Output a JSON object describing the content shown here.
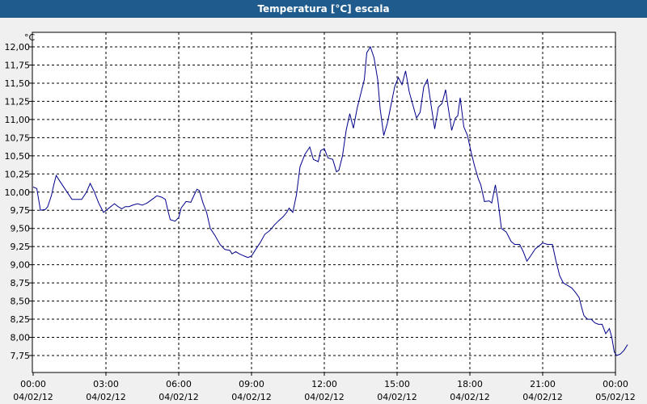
{
  "window": {
    "title": "Temperatura [°C] escala"
  },
  "chart_data": {
    "type": "line",
    "title": "Temperatura [°C] escala",
    "ylabel": "°C",
    "xlabel": "",
    "ylim": [
      7.55,
      12.17
    ],
    "xlim": [
      0,
      24
    ],
    "grid": true,
    "y_ticks": [
      "12,00",
      "11,75",
      "11,50",
      "11,25",
      "11,00",
      "10,75",
      "10,50",
      "10,25",
      "10,00",
      "9,75",
      "9,50",
      "9,25",
      "9,00",
      "8,75",
      "8,50",
      "8,25",
      "8,00",
      "7,75"
    ],
    "y_tick_values": [
      12.0,
      11.75,
      11.5,
      11.25,
      11.0,
      10.75,
      10.5,
      10.25,
      10.0,
      9.75,
      9.5,
      9.25,
      9.0,
      8.75,
      8.5,
      8.25,
      8.0,
      7.75
    ],
    "x_ticks": [
      {
        "time": "00:00",
        "date": "04/02/12",
        "hour": 0
      },
      {
        "time": "03:00",
        "date": "04/02/12",
        "hour": 3
      },
      {
        "time": "06:00",
        "date": "04/02/12",
        "hour": 6
      },
      {
        "time": "09:00",
        "date": "04/02/12",
        "hour": 9
      },
      {
        "time": "12:00",
        "date": "04/02/12",
        "hour": 12
      },
      {
        "time": "15:00",
        "date": "04/02/12",
        "hour": 15
      },
      {
        "time": "18:00",
        "date": "04/02/12",
        "hour": 18
      },
      {
        "time": "21:00",
        "date": "04/02/12",
        "hour": 21
      },
      {
        "time": "00:00",
        "date": "05/02/12",
        "hour": 24
      }
    ],
    "series": [
      {
        "color": "#00008b",
        "points": [
          [
            0.0,
            10.07
          ],
          [
            0.15,
            10.05
          ],
          [
            0.3,
            9.75
          ],
          [
            0.5,
            9.76
          ],
          [
            0.6,
            9.8
          ],
          [
            0.75,
            9.95
          ],
          [
            0.85,
            10.1
          ],
          [
            0.95,
            10.23
          ],
          [
            1.1,
            10.15
          ],
          [
            1.3,
            10.05
          ],
          [
            1.5,
            9.95
          ],
          [
            1.6,
            9.9
          ],
          [
            1.8,
            9.9
          ],
          [
            2.0,
            9.9
          ],
          [
            2.2,
            10.0
          ],
          [
            2.35,
            10.12
          ],
          [
            2.5,
            10.02
          ],
          [
            2.7,
            9.85
          ],
          [
            2.9,
            9.72
          ],
          [
            3.05,
            9.76
          ],
          [
            3.2,
            9.8
          ],
          [
            3.35,
            9.84
          ],
          [
            3.5,
            9.8
          ],
          [
            3.65,
            9.77
          ],
          [
            3.8,
            9.8
          ],
          [
            3.95,
            9.8
          ],
          [
            4.1,
            9.82
          ],
          [
            4.3,
            9.84
          ],
          [
            4.5,
            9.82
          ],
          [
            4.7,
            9.85
          ],
          [
            4.9,
            9.9
          ],
          [
            5.1,
            9.95
          ],
          [
            5.3,
            9.93
          ],
          [
            5.45,
            9.9
          ],
          [
            5.55,
            9.75
          ],
          [
            5.65,
            9.62
          ],
          [
            5.85,
            9.6
          ],
          [
            6.0,
            9.65
          ],
          [
            6.1,
            9.78
          ],
          [
            6.3,
            9.87
          ],
          [
            6.5,
            9.86
          ],
          [
            6.65,
            9.97
          ],
          [
            6.75,
            10.04
          ],
          [
            6.85,
            10.02
          ],
          [
            7.0,
            9.85
          ],
          [
            7.15,
            9.72
          ],
          [
            7.3,
            9.5
          ],
          [
            7.5,
            9.4
          ],
          [
            7.7,
            9.28
          ],
          [
            7.9,
            9.21
          ],
          [
            8.1,
            9.2
          ],
          [
            8.2,
            9.15
          ],
          [
            8.35,
            9.18
          ],
          [
            8.5,
            9.15
          ],
          [
            8.7,
            9.12
          ],
          [
            8.85,
            9.1
          ],
          [
            9.0,
            9.12
          ],
          [
            9.15,
            9.2
          ],
          [
            9.35,
            9.3
          ],
          [
            9.55,
            9.42
          ],
          [
            9.75,
            9.47
          ],
          [
            9.95,
            9.55
          ],
          [
            10.1,
            9.6
          ],
          [
            10.3,
            9.66
          ],
          [
            10.45,
            9.72
          ],
          [
            10.55,
            9.78
          ],
          [
            10.7,
            9.72
          ],
          [
            10.85,
            9.96
          ],
          [
            11.0,
            10.35
          ],
          [
            11.2,
            10.52
          ],
          [
            11.4,
            10.62
          ],
          [
            11.55,
            10.45
          ],
          [
            11.75,
            10.42
          ],
          [
            11.85,
            10.57
          ],
          [
            12.0,
            10.6
          ],
          [
            12.15,
            10.47
          ],
          [
            12.35,
            10.45
          ],
          [
            12.5,
            10.28
          ],
          [
            12.6,
            10.3
          ],
          [
            12.75,
            10.5
          ],
          [
            12.9,
            10.85
          ],
          [
            13.05,
            11.08
          ],
          [
            13.2,
            10.88
          ],
          [
            13.35,
            11.15
          ],
          [
            13.5,
            11.35
          ],
          [
            13.65,
            11.55
          ],
          [
            13.75,
            11.92
          ],
          [
            13.9,
            12.0
          ],
          [
            14.05,
            11.85
          ],
          [
            14.2,
            11.55
          ],
          [
            14.3,
            11.15
          ],
          [
            14.45,
            10.78
          ],
          [
            14.6,
            10.95
          ],
          [
            14.75,
            11.2
          ],
          [
            14.9,
            11.45
          ],
          [
            15.05,
            11.58
          ],
          [
            15.2,
            11.48
          ],
          [
            15.35,
            11.67
          ],
          [
            15.5,
            11.38
          ],
          [
            15.65,
            11.2
          ],
          [
            15.8,
            11.02
          ],
          [
            15.95,
            11.1
          ],
          [
            16.1,
            11.45
          ],
          [
            16.25,
            11.55
          ],
          [
            16.4,
            11.2
          ],
          [
            16.55,
            10.87
          ],
          [
            16.7,
            11.17
          ],
          [
            16.85,
            11.22
          ],
          [
            17.0,
            11.41
          ],
          [
            17.1,
            11.18
          ],
          [
            17.25,
            10.85
          ],
          [
            17.4,
            11.02
          ],
          [
            17.5,
            11.05
          ],
          [
            17.6,
            11.3
          ],
          [
            17.75,
            10.9
          ],
          [
            17.9,
            10.78
          ],
          [
            18.05,
            10.55
          ],
          [
            18.2,
            10.35
          ],
          [
            18.35,
            10.18
          ],
          [
            18.45,
            10.1
          ],
          [
            18.6,
            9.87
          ],
          [
            18.8,
            9.88
          ],
          [
            18.9,
            9.85
          ],
          [
            19.05,
            10.1
          ],
          [
            19.15,
            9.9
          ],
          [
            19.3,
            9.5
          ],
          [
            19.5,
            9.45
          ],
          [
            19.7,
            9.32
          ],
          [
            19.85,
            9.28
          ],
          [
            20.05,
            9.28
          ],
          [
            20.2,
            9.18
          ],
          [
            20.35,
            9.05
          ],
          [
            20.5,
            9.12
          ],
          [
            20.7,
            9.22
          ],
          [
            20.85,
            9.26
          ],
          [
            21.0,
            9.3
          ],
          [
            21.2,
            9.28
          ],
          [
            21.4,
            9.28
          ],
          [
            21.55,
            9.05
          ],
          [
            21.7,
            8.85
          ],
          [
            21.85,
            8.75
          ],
          [
            22.0,
            8.72
          ],
          [
            22.2,
            8.68
          ],
          [
            22.35,
            8.62
          ],
          [
            22.5,
            8.55
          ],
          [
            22.6,
            8.42
          ],
          [
            22.7,
            8.3
          ],
          [
            22.85,
            8.25
          ],
          [
            23.0,
            8.25
          ],
          [
            23.15,
            8.2
          ],
          [
            23.3,
            8.18
          ],
          [
            23.45,
            8.18
          ],
          [
            23.6,
            8.05
          ],
          [
            23.75,
            8.12
          ],
          [
            23.85,
            8.0
          ],
          [
            23.95,
            7.8
          ],
          [
            24.05,
            7.75
          ],
          [
            24.2,
            7.77
          ],
          [
            24.35,
            7.82
          ],
          [
            24.5,
            7.9
          ]
        ]
      }
    ]
  }
}
